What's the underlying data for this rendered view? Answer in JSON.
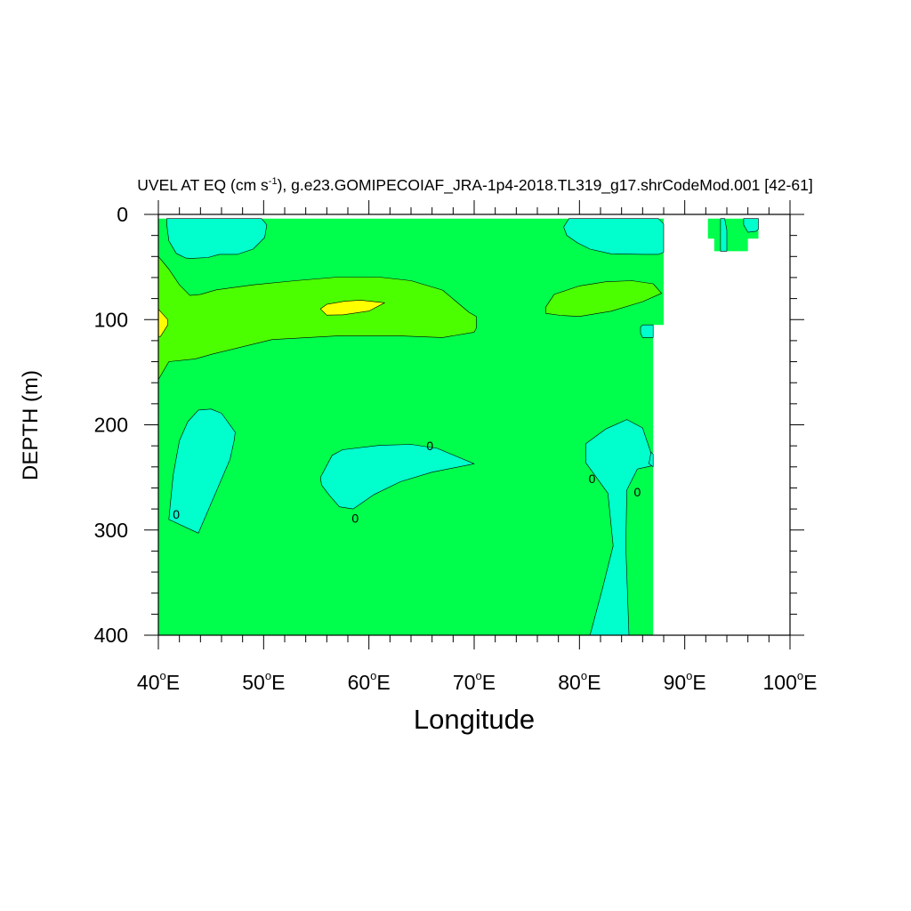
{
  "chart_data": {
    "type": "contour",
    "title": {
      "prefix": "UVEL AT EQ (cm s",
      "superscript": "-1",
      "suffix": "), g.e23.GOMIPECOIAF_JRA-1p4-2018.TL319_g17.shrCodeMod.001 [42-61]"
    },
    "xlabel": "Longitude",
    "ylabel": "DEPTH (m)",
    "xlim": [
      40,
      100
    ],
    "ylim": [
      0,
      400
    ],
    "x_ticks": [
      {
        "value": 40,
        "label": "40",
        "unit": "E"
      },
      {
        "value": 50,
        "label": "50",
        "unit": "E"
      },
      {
        "value": 60,
        "label": "60",
        "unit": "E"
      },
      {
        "value": 70,
        "label": "70",
        "unit": "E"
      },
      {
        "value": 80,
        "label": "80",
        "unit": "E"
      },
      {
        "value": 90,
        "label": "90",
        "unit": "E"
      },
      {
        "value": 100,
        "label": "100",
        "unit": "E"
      }
    ],
    "y_ticks": [
      {
        "value": 0,
        "label": "0"
      },
      {
        "value": 100,
        "label": "100"
      },
      {
        "value": 200,
        "label": "200"
      },
      {
        "value": 300,
        "label": "300"
      },
      {
        "value": 400,
        "label": "400"
      }
    ],
    "colors": {
      "background_fill": "#00ff4c",
      "cyan_fill": "#00ffcc",
      "lime_fill": "#4cff00",
      "yellow_fill": "#ffff00",
      "light_green_fill": "#00ff80"
    },
    "contour_labels": [
      {
        "x": 41.7,
        "y": 285,
        "label": "0"
      },
      {
        "x": 58.7,
        "y": 289,
        "label": "0"
      },
      {
        "x": 65.8,
        "y": 220,
        "label": "0"
      },
      {
        "x": 81.2,
        "y": 251,
        "label": "0"
      },
      {
        "x": 85.5,
        "y": 264,
        "label": "0"
      }
    ],
    "regions": [
      {
        "name": "data-domain-main",
        "fill": "background_fill",
        "stroke": false,
        "points": [
          [
            40,
            4
          ],
          [
            88,
            4
          ],
          [
            88,
            105
          ],
          [
            87,
            105
          ],
          [
            87,
            400
          ],
          [
            40,
            400
          ]
        ]
      },
      {
        "name": "data-domain-east-cells",
        "fill": "background_fill",
        "stroke": false,
        "points": [
          [
            92.2,
            4
          ],
          [
            97,
            4
          ],
          [
            97,
            23
          ],
          [
            96,
            23
          ],
          [
            96,
            35
          ],
          [
            92.8,
            35
          ],
          [
            92.8,
            23
          ],
          [
            92.2,
            23
          ]
        ]
      },
      {
        "name": "negative-velocity-west-surface",
        "fill": "cyan_fill",
        "points": [
          [
            40.8,
            4
          ],
          [
            49.8,
            4
          ],
          [
            50.3,
            10
          ],
          [
            50.1,
            22
          ],
          [
            49,
            33
          ],
          [
            47.5,
            38
          ],
          [
            45.8,
            38
          ],
          [
            44.7,
            41
          ],
          [
            43.1,
            41.8
          ],
          [
            42.6,
            41.5
          ],
          [
            41.7,
            37
          ],
          [
            41,
            25
          ],
          [
            40.8,
            10
          ]
        ]
      },
      {
        "name": "negative-velocity-east-surface",
        "fill": "cyan_fill",
        "points": [
          [
            79,
            4
          ],
          [
            87.5,
            4
          ],
          [
            88,
            9
          ],
          [
            88,
            36
          ],
          [
            87.5,
            38
          ],
          [
            86,
            38
          ],
          [
            83,
            37.5
          ],
          [
            81,
            33
          ],
          [
            79.8,
            27
          ],
          [
            78.8,
            20
          ],
          [
            78.5,
            12
          ]
        ]
      },
      {
        "name": "westward-jet-band",
        "fill": "lime_fill",
        "points": [
          [
            40,
            40
          ],
          [
            41,
            52
          ],
          [
            42,
            67
          ],
          [
            43,
            77
          ],
          [
            44,
            76
          ],
          [
            45.5,
            71.7
          ],
          [
            49,
            67
          ],
          [
            53,
            63
          ],
          [
            57,
            59.6
          ],
          [
            61,
            59.6
          ],
          [
            64,
            63
          ],
          [
            67,
            72
          ],
          [
            69.5,
            93
          ],
          [
            70.2,
            97
          ],
          [
            70.2,
            108
          ],
          [
            70,
            112
          ],
          [
            67,
            117
          ],
          [
            63,
            115.5
          ],
          [
            57,
            115.5
          ],
          [
            50.8,
            119
          ],
          [
            45.2,
            132.6
          ],
          [
            43.5,
            137.3
          ],
          [
            41,
            140
          ],
          [
            40,
            157
          ]
        ]
      },
      {
        "name": "westward-jet-east-band",
        "fill": "lime_fill",
        "points": [
          [
            76.8,
            88
          ],
          [
            77.6,
            76
          ],
          [
            80,
            68
          ],
          [
            82.5,
            64
          ],
          [
            85,
            63
          ],
          [
            87,
            66
          ],
          [
            87.8,
            75
          ],
          [
            86,
            83
          ],
          [
            83,
            92
          ],
          [
            80,
            97
          ],
          [
            78.2,
            96
          ],
          [
            76.8,
            94
          ]
        ]
      },
      {
        "name": "strong-westward-core-center",
        "fill": "yellow_fill",
        "points": [
          [
            55.4,
            89.8
          ],
          [
            56,
            85.5
          ],
          [
            57.7,
            82.5
          ],
          [
            59.2,
            81.5
          ],
          [
            61.5,
            84
          ],
          [
            60,
            91.8
          ],
          [
            57.5,
            95.5
          ],
          [
            56,
            95.7
          ]
        ]
      },
      {
        "name": "strong-westward-core-west",
        "fill": "yellow_fill",
        "points": [
          [
            40,
            90
          ],
          [
            40.9,
            100
          ],
          [
            40.9,
            105
          ],
          [
            40.2,
            116
          ],
          [
            40,
            116
          ]
        ]
      },
      {
        "name": "negative-velocity-west-deep",
        "fill": "cyan_fill",
        "points": [
          [
            43.8,
            186
          ],
          [
            45,
            185
          ],
          [
            46,
            189
          ],
          [
            47.3,
            207
          ],
          [
            47.2,
            215
          ],
          [
            46.8,
            233
          ],
          [
            43.8,
            303
          ],
          [
            41,
            290
          ],
          [
            41.4,
            248
          ],
          [
            42,
            215
          ],
          [
            42.8,
            197
          ]
        ]
      },
      {
        "name": "negative-velocity-center-deep",
        "fill": "cyan_fill",
        "points": [
          [
            56.5,
            229
          ],
          [
            57.5,
            223.7
          ],
          [
            61,
            219.5
          ],
          [
            64,
            218.6
          ],
          [
            66.5,
            222.4
          ],
          [
            70,
            237
          ],
          [
            66,
            245
          ],
          [
            63,
            254
          ],
          [
            60.5,
            266.2
          ],
          [
            58.5,
            280
          ],
          [
            57.2,
            278
          ],
          [
            56.2,
            266.5
          ],
          [
            55.5,
            257.2
          ],
          [
            55.4,
            250
          ]
        ]
      },
      {
        "name": "negative-velocity-east-deep",
        "fill": "cyan_fill",
        "points": [
          [
            80.6,
            218
          ],
          [
            82.5,
            204
          ],
          [
            84.5,
            195
          ],
          [
            86,
            203
          ],
          [
            86.9,
            230
          ],
          [
            86.9,
            239
          ],
          [
            85.5,
            242
          ],
          [
            84.5,
            262
          ],
          [
            84.4,
            315
          ],
          [
            84.7,
            400
          ],
          [
            81,
            400
          ],
          [
            82.2,
            355
          ],
          [
            83.2,
            315
          ],
          [
            82.7,
            265
          ],
          [
            80.6,
            236
          ]
        ]
      },
      {
        "name": "negative-velocity-east-mid",
        "fill": "cyan_fill",
        "points": [
          [
            86,
            105
          ],
          [
            87,
            105
          ],
          [
            87,
            117
          ],
          [
            86,
            117
          ],
          [
            85.8,
            113
          ],
          [
            85.8,
            107
          ]
        ]
      },
      {
        "name": "negative-velocity-east-edge",
        "fill": "cyan_fill",
        "points": [
          [
            86.8,
            226
          ],
          [
            87,
            228
          ],
          [
            87,
            240
          ],
          [
            86.6,
            237
          ]
        ]
      },
      {
        "name": "negative-velocity-far-east-a",
        "fill": "cyan_fill",
        "points": [
          [
            93.4,
            4
          ],
          [
            93.8,
            4
          ],
          [
            94,
            15
          ],
          [
            94,
            35
          ],
          [
            93.4,
            35
          ],
          [
            93.4,
            23
          ]
        ]
      },
      {
        "name": "negative-velocity-far-east-b",
        "fill": "cyan_fill",
        "points": [
          [
            95.6,
            4
          ],
          [
            97,
            4
          ],
          [
            97,
            14
          ],
          [
            96.8,
            16
          ],
          [
            96,
            17
          ],
          [
            95.6,
            10
          ]
        ]
      }
    ]
  }
}
